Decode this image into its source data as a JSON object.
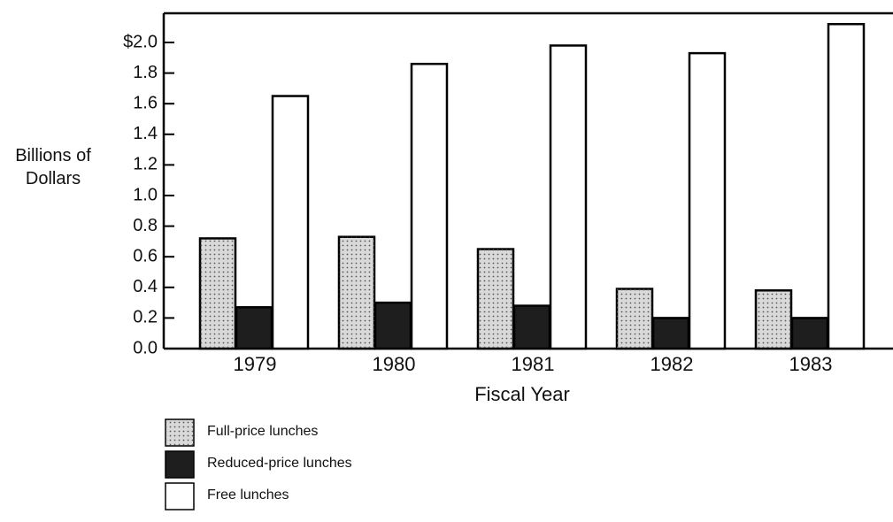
{
  "chart_data": {
    "type": "bar",
    "y_label": "Billions of Dollars",
    "x_label": "Fiscal Year",
    "categories": [
      "1979",
      "1980",
      "1981",
      "1982",
      "1983"
    ],
    "series": [
      {
        "name": "Full-price lunches",
        "color": "#d9d9d9",
        "values": [
          0.72,
          0.73,
          0.65,
          0.39,
          0.38
        ]
      },
      {
        "name": "Reduced-price lunches",
        "color": "#1e1e1e",
        "values": [
          0.27,
          0.3,
          0.28,
          0.2,
          0.2
        ]
      },
      {
        "name": "Free lunches",
        "color": "#ffffff",
        "values": [
          1.65,
          1.86,
          1.98,
          1.93,
          2.12
        ]
      }
    ],
    "ylim": [
      0,
      2.2
    ],
    "yticks": [
      {
        "value": 0,
        "label": "0.0"
      },
      0.2,
      0.4,
      0.6,
      0.8,
      {
        "value": 1,
        "label": "1.0"
      },
      1.2,
      1.4,
      1.6,
      1.8,
      {
        "value": 2,
        "label": "$2.0"
      }
    ],
    "grid": false
  }
}
